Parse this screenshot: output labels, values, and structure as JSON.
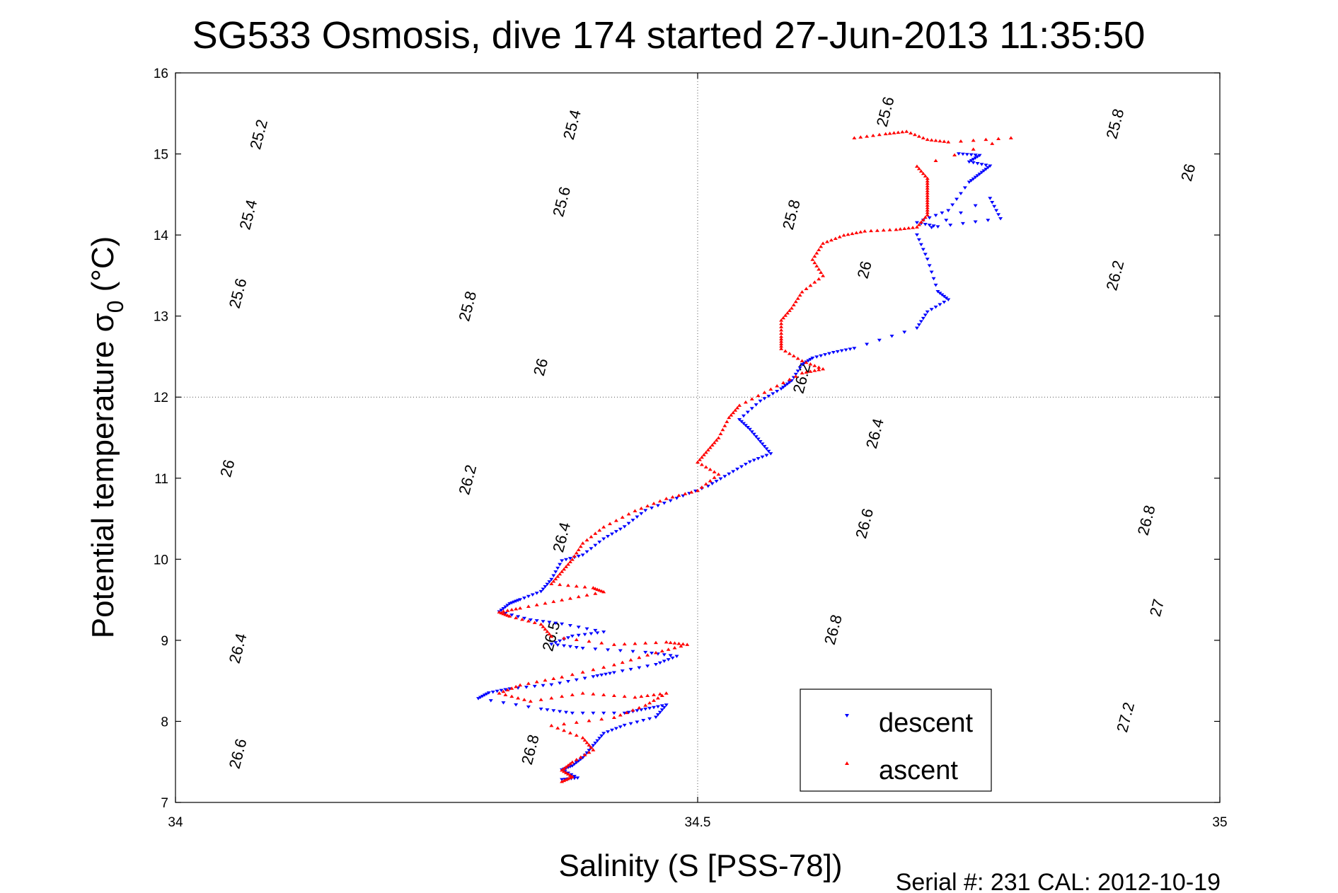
{
  "chart_data": {
    "type": "scatter",
    "title": "SG533 Osmosis, dive 174 started 27-Jun-2013 11:35:50",
    "xlabel": "Salinity (S [PSS-78])",
    "ylabel": "Potential temperature σ",
    "ylabel_sub": "0",
    "ylabel_unit": "(°C)",
    "xlim": [
      34,
      35
    ],
    "ylim": [
      7,
      16
    ],
    "xticks": [
      "34",
      "34.5",
      "35"
    ],
    "yticks": [
      "7",
      "8",
      "9",
      "10",
      "11",
      "12",
      "13",
      "14",
      "15",
      "16"
    ],
    "grid": "x=34.5 and y=12 dotted",
    "legend_position": "bottom-right",
    "footer": "Serial #: 231  CAL: 2012-10-19",
    "contour_levels": [
      25.2,
      25.4,
      25.6,
      25.8,
      26.0,
      26.2,
      26.4,
      26.6,
      26.8,
      27.0,
      27.2
    ],
    "contour_labels": [
      {
        "text": "25.2",
        "s": 34.08,
        "t": 15.24
      },
      {
        "text": "25.4",
        "s": 34.07,
        "t": 14.25
      },
      {
        "text": "25.6",
        "s": 34.06,
        "t": 13.28
      },
      {
        "text": "26",
        "s": 34.05,
        "t": 11.12
      },
      {
        "text": "26.4",
        "s": 34.06,
        "t": 8.9
      },
      {
        "text": "26.6",
        "s": 34.06,
        "t": 7.6
      },
      {
        "text": "25.4",
        "s": 34.38,
        "t": 15.36
      },
      {
        "text": "25.6",
        "s": 34.37,
        "t": 14.41
      },
      {
        "text": "25.8",
        "s": 34.28,
        "t": 13.12
      },
      {
        "text": "26",
        "s": 34.35,
        "t": 12.37
      },
      {
        "text": "26.2",
        "s": 34.28,
        "t": 10.98
      },
      {
        "text": "26.4",
        "s": 34.37,
        "t": 10.27
      },
      {
        "text": "26.5",
        "s": 34.36,
        "t": 9.05
      },
      {
        "text": "26.8",
        "s": 34.34,
        "t": 7.65
      },
      {
        "text": "25.6",
        "s": 34.68,
        "t": 15.52
      },
      {
        "text": "25.8",
        "s": 34.59,
        "t": 14.25
      },
      {
        "text": "26",
        "s": 34.66,
        "t": 13.57
      },
      {
        "text": "26.2",
        "s": 34.6,
        "t": 12.23
      },
      {
        "text": "26.4",
        "s": 34.67,
        "t": 11.55
      },
      {
        "text": "26.6",
        "s": 34.66,
        "t": 10.44
      },
      {
        "text": "26.8",
        "s": 34.63,
        "t": 9.13
      },
      {
        "text": "25.8",
        "s": 34.9,
        "t": 15.37
      },
      {
        "text": "26",
        "s": 34.97,
        "t": 14.77
      },
      {
        "text": "26.2",
        "s": 34.9,
        "t": 13.5
      },
      {
        "text": "26.8",
        "s": 34.93,
        "t": 10.48
      },
      {
        "text": "27",
        "s": 34.94,
        "t": 9.4
      },
      {
        "text": "27.2",
        "s": 34.91,
        "t": 8.05
      }
    ],
    "series": [
      {
        "name": "descent",
        "color": "#0000ff",
        "marker": "triangle-down",
        "points": [
          [
            34.75,
            15.0
          ],
          [
            34.77,
            14.98
          ],
          [
            34.76,
            14.9
          ],
          [
            34.78,
            14.85
          ],
          [
            34.77,
            14.75
          ],
          [
            34.76,
            14.65
          ],
          [
            34.74,
            14.3
          ],
          [
            34.71,
            14.15
          ],
          [
            34.73,
            14.1
          ],
          [
            34.79,
            14.2
          ],
          [
            34.78,
            14.45
          ],
          [
            34.71,
            14.0
          ],
          [
            34.72,
            13.7
          ],
          [
            34.73,
            13.3
          ],
          [
            34.74,
            13.2
          ],
          [
            34.72,
            13.05
          ],
          [
            34.71,
            12.85
          ],
          [
            34.65,
            12.6
          ],
          [
            34.63,
            12.55
          ],
          [
            34.61,
            12.48
          ],
          [
            34.6,
            12.4
          ],
          [
            34.59,
            12.2
          ],
          [
            34.58,
            12.1
          ],
          [
            34.56,
            11.95
          ],
          [
            34.54,
            11.72
          ],
          [
            34.55,
            11.6
          ],
          [
            34.56,
            11.45
          ],
          [
            34.57,
            11.3
          ],
          [
            34.55,
            11.2
          ],
          [
            34.53,
            11.05
          ],
          [
            34.51,
            10.9
          ],
          [
            34.48,
            10.75
          ],
          [
            34.45,
            10.6
          ],
          [
            34.43,
            10.4
          ],
          [
            34.41,
            10.25
          ],
          [
            34.39,
            10.05
          ],
          [
            34.37,
            9.98
          ],
          [
            34.36,
            9.75
          ],
          [
            34.35,
            9.6
          ],
          [
            34.33,
            9.5
          ],
          [
            34.32,
            9.45
          ],
          [
            34.31,
            9.35
          ],
          [
            34.34,
            9.25
          ],
          [
            34.37,
            9.2
          ],
          [
            34.41,
            9.1
          ],
          [
            34.38,
            9.05
          ],
          [
            34.36,
            8.95
          ],
          [
            34.39,
            8.9
          ],
          [
            34.45,
            8.85
          ],
          [
            34.48,
            8.8
          ],
          [
            34.46,
            8.7
          ],
          [
            34.42,
            8.6
          ],
          [
            34.4,
            8.55
          ],
          [
            34.36,
            8.45
          ],
          [
            34.32,
            8.4
          ],
          [
            34.3,
            8.35
          ],
          [
            34.29,
            8.28
          ],
          [
            34.35,
            8.15
          ],
          [
            34.38,
            8.1
          ],
          [
            34.43,
            8.1
          ],
          [
            34.45,
            8.15
          ],
          [
            34.47,
            8.2
          ],
          [
            34.46,
            8.05
          ],
          [
            34.43,
            7.95
          ],
          [
            34.41,
            7.85
          ],
          [
            34.4,
            7.7
          ],
          [
            34.39,
            7.55
          ],
          [
            34.38,
            7.45
          ],
          [
            34.37,
            7.4
          ],
          [
            34.385,
            7.3
          ],
          [
            34.37,
            7.28
          ]
        ]
      },
      {
        "name": "ascent",
        "color": "#ff0000",
        "marker": "triangle-up",
        "points": [
          [
            34.65,
            15.2
          ],
          [
            34.68,
            15.25
          ],
          [
            34.7,
            15.28
          ],
          [
            34.72,
            15.18
          ],
          [
            34.74,
            15.15
          ],
          [
            34.8,
            15.2
          ],
          [
            34.71,
            14.85
          ],
          [
            34.72,
            14.7
          ],
          [
            34.72,
            14.55
          ],
          [
            34.72,
            14.4
          ],
          [
            34.72,
            14.25
          ],
          [
            34.71,
            14.1
          ],
          [
            34.69,
            14.07
          ],
          [
            34.66,
            14.05
          ],
          [
            34.64,
            14.0
          ],
          [
            34.62,
            13.9
          ],
          [
            34.61,
            13.7
          ],
          [
            34.62,
            13.5
          ],
          [
            34.6,
            13.3
          ],
          [
            34.59,
            13.1
          ],
          [
            34.58,
            12.95
          ],
          [
            34.58,
            12.75
          ],
          [
            34.58,
            12.6
          ],
          [
            34.6,
            12.45
          ],
          [
            34.62,
            12.35
          ],
          [
            34.6,
            12.3
          ],
          [
            34.57,
            12.1
          ],
          [
            34.54,
            11.9
          ],
          [
            34.53,
            11.75
          ],
          [
            34.52,
            11.5
          ],
          [
            34.51,
            11.35
          ],
          [
            34.5,
            11.2
          ],
          [
            34.52,
            11.05
          ],
          [
            34.5,
            10.85
          ],
          [
            34.47,
            10.75
          ],
          [
            34.44,
            10.6
          ],
          [
            34.41,
            10.4
          ],
          [
            34.39,
            10.2
          ],
          [
            34.38,
            10.0
          ],
          [
            34.37,
            9.85
          ],
          [
            34.36,
            9.7
          ],
          [
            34.4,
            9.65
          ],
          [
            34.41,
            9.6
          ],
          [
            34.37,
            9.5
          ],
          [
            34.33,
            9.4
          ],
          [
            34.31,
            9.35
          ],
          [
            34.32,
            9.3
          ],
          [
            34.35,
            9.2
          ],
          [
            34.36,
            9.05
          ],
          [
            34.42,
            8.95
          ],
          [
            34.47,
            8.98
          ],
          [
            34.49,
            8.95
          ],
          [
            34.46,
            8.85
          ],
          [
            34.42,
            8.7
          ],
          [
            34.37,
            8.55
          ],
          [
            34.33,
            8.45
          ],
          [
            34.31,
            8.35
          ],
          [
            34.34,
            8.25
          ],
          [
            34.39,
            8.35
          ],
          [
            34.44,
            8.3
          ],
          [
            34.47,
            8.35
          ],
          [
            34.45,
            8.2
          ],
          [
            34.42,
            8.05
          ],
          [
            34.36,
            7.95
          ],
          [
            34.39,
            7.8
          ],
          [
            34.4,
            7.65
          ],
          [
            34.38,
            7.5
          ],
          [
            34.37,
            7.4
          ],
          [
            34.38,
            7.32
          ],
          [
            34.37,
            7.26
          ]
        ]
      }
    ]
  }
}
